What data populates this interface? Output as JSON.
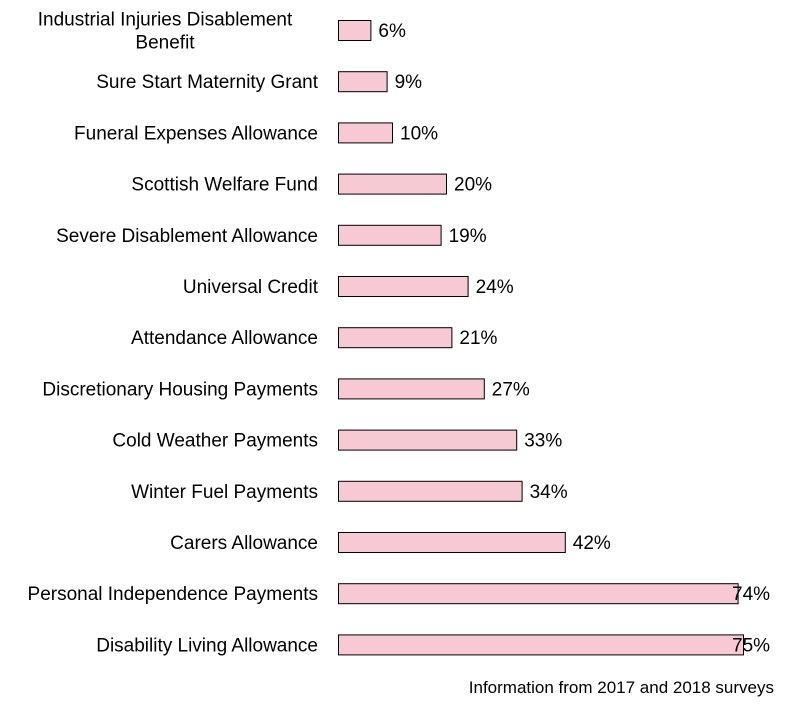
{
  "chart_data": {
    "type": "bar",
    "orientation": "horizontal",
    "categories": [
      "Industrial Injuries Disablement Benefit",
      "Sure Start Maternity Grant",
      "Funeral Expenses Allowance",
      "Scottish Welfare Fund",
      "Severe Disablement Allowance",
      "Universal Credit",
      "Attendance Allowance",
      "Discretionary Housing Payments",
      "Cold Weather Payments",
      "Winter Fuel Payments",
      "Carers Allowance",
      "Personal Independence Payments",
      "Disability Living Allowance"
    ],
    "values": [
      6,
      9,
      10,
      20,
      19,
      24,
      21,
      27,
      33,
      34,
      42,
      74,
      75
    ],
    "value_labels": [
      "6%",
      "9%",
      "10%",
      "20%",
      "19%",
      "24%",
      "21%",
      "27%",
      "33%",
      "34%",
      "42%",
      "74%",
      "75%"
    ],
    "unit": "%",
    "xlim": [
      0,
      75
    ],
    "bar_color": "#f7c9d3",
    "bar_outline": "#000000",
    "grid": false,
    "legend": false
  },
  "note": "Information from 2017 and 2018 surveys"
}
